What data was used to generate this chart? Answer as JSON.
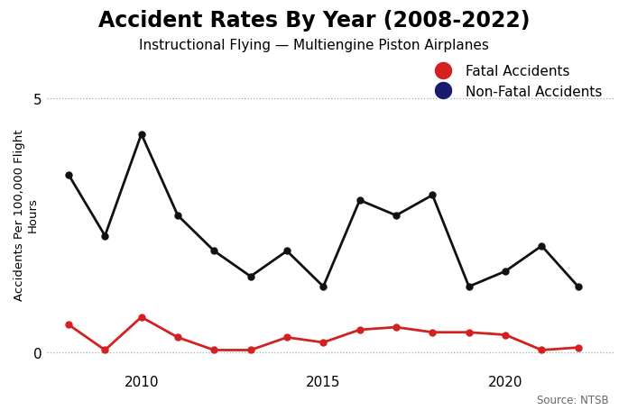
{
  "years": [
    2008,
    2009,
    2010,
    2011,
    2012,
    2013,
    2014,
    2015,
    2016,
    2017,
    2018,
    2019,
    2020,
    2021,
    2022
  ],
  "fatal": [
    0.55,
    0.05,
    0.7,
    0.3,
    0.05,
    0.05,
    0.3,
    0.2,
    0.45,
    0.5,
    0.4,
    0.4,
    0.35,
    0.05,
    0.1
  ],
  "nonfatal": [
    3.5,
    2.3,
    4.3,
    2.7,
    2.0,
    1.5,
    2.0,
    1.3,
    3.0,
    2.7,
    3.1,
    1.3,
    1.6,
    2.1,
    1.3
  ],
  "fatal_color": "#d42020",
  "nonfatal_color": "#111111",
  "legend_fatal_color": "#d42020",
  "legend_nonfatal_color": "#1a1a6e",
  "title": "Accident Rates By Year (2008-2022)",
  "subtitle": "Instructional Flying — Multiengine Piston Airplanes",
  "ylabel": "Accidents Per 100,000 Flight\nHours",
  "yticks": [
    0,
    5
  ],
  "ylim": [
    -0.35,
    5.8
  ],
  "xlim": [
    2007.4,
    2023.0
  ],
  "source_text": "Source: NTSB",
  "title_fontsize": 17,
  "subtitle_fontsize": 11,
  "ylabel_fontsize": 9.5,
  "tick_fontsize": 11,
  "source_fontsize": 8.5,
  "legend_fontsize": 11,
  "xtick_years": [
    2010,
    2015,
    2020
  ],
  "background_color": "#ffffff",
  "line_width": 2.0,
  "marker_size": 5
}
